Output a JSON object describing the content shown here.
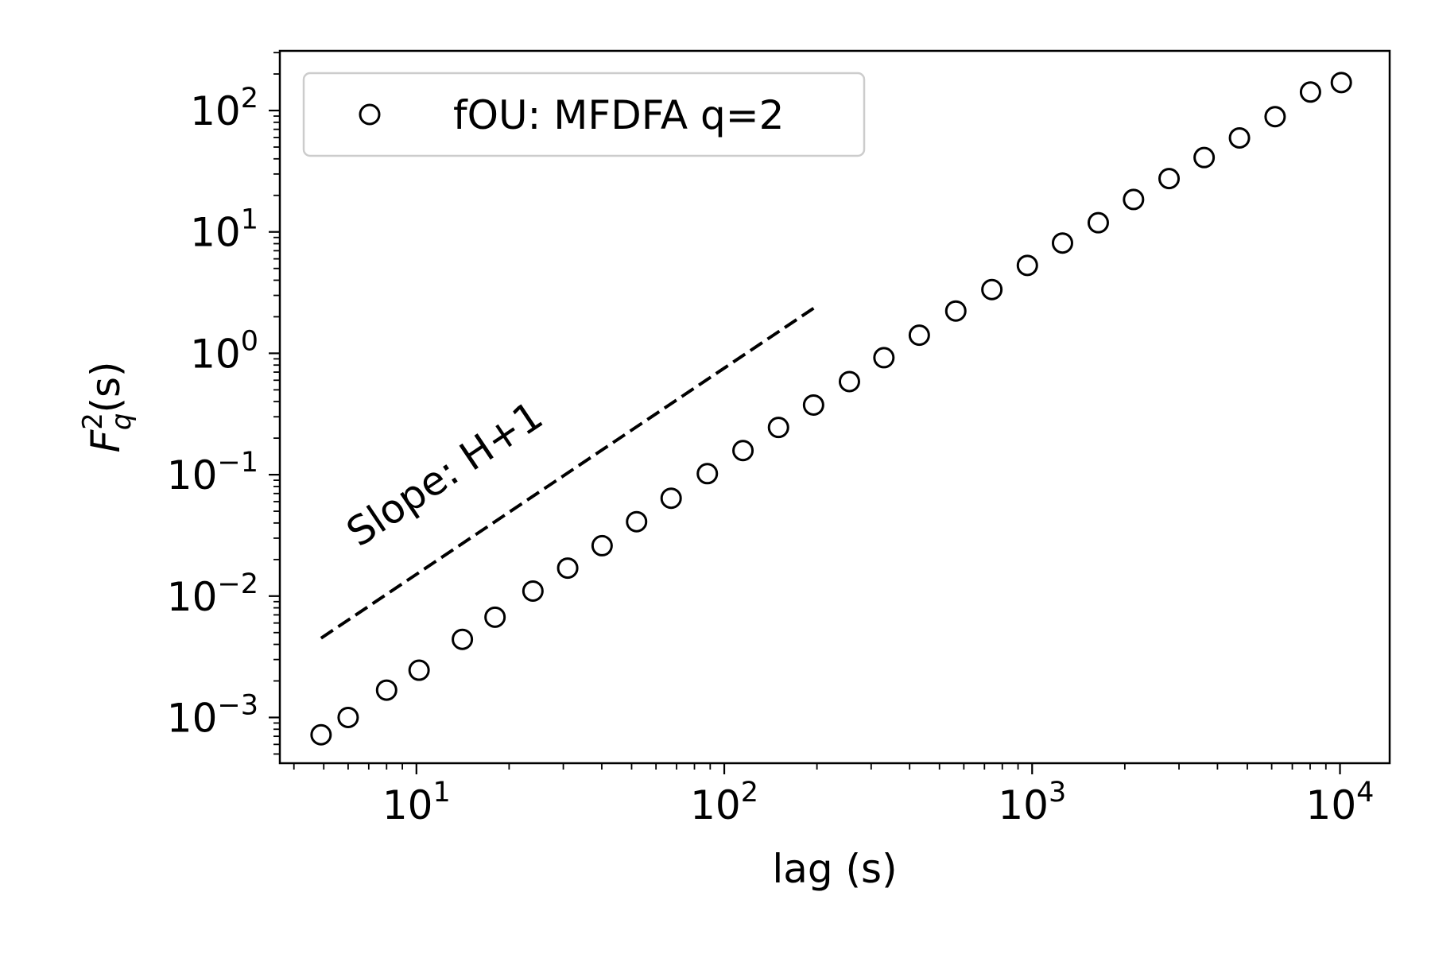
{
  "chart_data": {
    "type": "scatter",
    "xscale": "log",
    "yscale": "log",
    "xlim": [
      3.6,
      14500
    ],
    "ylim": [
      0.00042,
      310
    ],
    "xlabel": "lag (s)",
    "ylabel": {
      "base": "F",
      "sub": "q",
      "sup": "2",
      "suffix": "(s)"
    },
    "x_ticks": [
      {
        "value": 10,
        "base": "10",
        "exp": "1"
      },
      {
        "value": 100,
        "base": "10",
        "exp": "2"
      },
      {
        "value": 1000,
        "base": "10",
        "exp": "3"
      },
      {
        "value": 10000,
        "base": "10",
        "exp": "4"
      }
    ],
    "y_ticks": [
      {
        "value": 0.001,
        "base": "10",
        "exp": "−3"
      },
      {
        "value": 0.01,
        "base": "10",
        "exp": "−2"
      },
      {
        "value": 0.1,
        "base": "10",
        "exp": "−1"
      },
      {
        "value": 1,
        "base": "10",
        "exp": "0"
      },
      {
        "value": 10,
        "base": "10",
        "exp": "1"
      },
      {
        "value": 100,
        "base": "10",
        "exp": "2"
      }
    ],
    "grid": false,
    "legend": {
      "position": "top-left"
    },
    "series": [
      {
        "name": "fOU: MFDFA q=2",
        "marker": "open-circle",
        "color": "#000000",
        "x": [
          4.9,
          6.0,
          8.0,
          10.2,
          14.1,
          18.0,
          23.9,
          31.0,
          40.1,
          51.9,
          67.2,
          88.1,
          115,
          150,
          195,
          255,
          330,
          430,
          565,
          740,
          965,
          1255,
          1640,
          2135,
          2785,
          3620,
          4715,
          6155,
          8020,
          10100
        ],
        "y": [
          0.00072,
          0.001,
          0.00168,
          0.00245,
          0.0044,
          0.0067,
          0.011,
          0.017,
          0.026,
          0.041,
          0.064,
          0.102,
          0.158,
          0.245,
          0.375,
          0.585,
          0.92,
          1.41,
          2.23,
          3.35,
          5.3,
          8.1,
          11.9,
          18.5,
          27.5,
          41.0,
          59.5,
          89.0,
          142,
          170
        ]
      }
    ],
    "annotations": [
      {
        "type": "dashed-line",
        "x": [
          4.9,
          195
        ],
        "y": [
          0.0045,
          2.35
        ],
        "color": "#000000"
      },
      {
        "type": "text",
        "text": "Slope: H+1",
        "x": 6.5,
        "y": 0.025
      }
    ]
  }
}
